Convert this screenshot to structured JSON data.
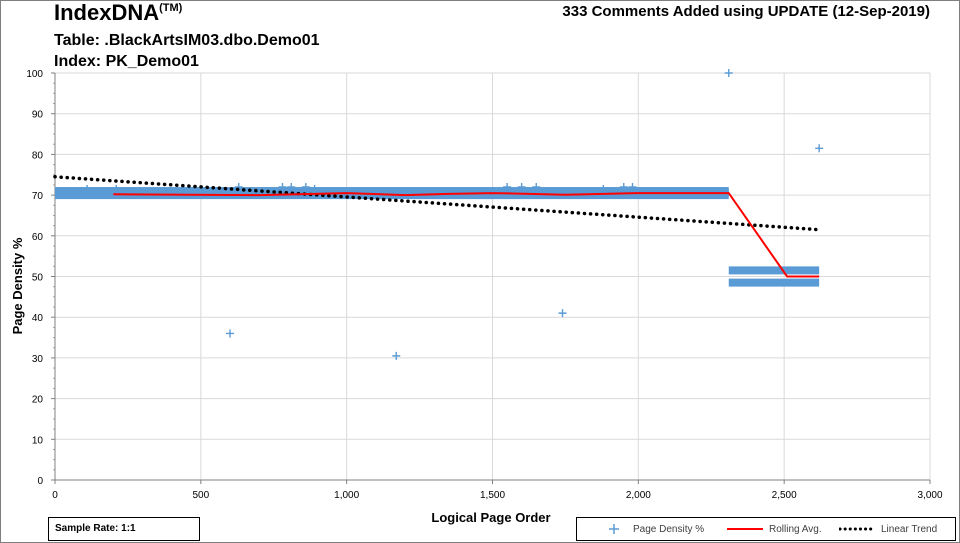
{
  "header": {
    "brand": "IndexDNA",
    "brand_mark": "(TM)",
    "title": "333 Comments Added using UPDATE (12-Sep-2019)",
    "table_line": "Table: .BlackArtsIM03.dbo.Demo01",
    "index_line": "Index: PK_Demo01"
  },
  "sample_rate": "Sample Rate: 1:1",
  "colors": {
    "series_density": "#5b9bd5",
    "series_rolling": "#ff0000",
    "series_trend": "#000000",
    "gridline": "#d9d9d9"
  },
  "chart_data": {
    "type": "scatter",
    "xlabel": "Logical Page Order",
    "ylabel": "Page Density %",
    "xlim": [
      0,
      3000
    ],
    "ylim": [
      0,
      100
    ],
    "x_ticks": [
      0,
      500,
      1000,
      1500,
      2000,
      2500,
      3000
    ],
    "x_tick_labels": [
      "0",
      "500",
      "1,000",
      "1,500",
      "2,000",
      "2,500",
      "3,000"
    ],
    "y_ticks": [
      0,
      10,
      20,
      30,
      40,
      50,
      60,
      70,
      80,
      90,
      100
    ],
    "y_tick_labels": [
      "0",
      "10",
      "20",
      "30",
      "40",
      "50",
      "60",
      "70",
      "80",
      "90",
      "100"
    ],
    "grid": true,
    "legend_position": "bottom-right",
    "series": [
      {
        "name": "Page Density %",
        "kind": "scatter",
        "marker": "plus",
        "dense_bands": [
          {
            "x_start": 0,
            "x_end": 2310,
            "y_values": [
              70,
              70.5,
              71
            ]
          },
          {
            "x_start": 2310,
            "x_end": 2620,
            "y_values": [
              48.5,
              51.5
            ]
          }
        ],
        "points": [
          {
            "x": 110,
            "y": 71.5
          },
          {
            "x": 210,
            "y": 71.5
          },
          {
            "x": 630,
            "y": 72
          },
          {
            "x": 780,
            "y": 72
          },
          {
            "x": 810,
            "y": 72
          },
          {
            "x": 860,
            "y": 72
          },
          {
            "x": 890,
            "y": 71.5
          },
          {
            "x": 1550,
            "y": 72
          },
          {
            "x": 1600,
            "y": 72
          },
          {
            "x": 1650,
            "y": 72
          },
          {
            "x": 1880,
            "y": 71.5
          },
          {
            "x": 1950,
            "y": 72
          },
          {
            "x": 1980,
            "y": 72
          },
          {
            "x": 600,
            "y": 36
          },
          {
            "x": 1170,
            "y": 30.5
          },
          {
            "x": 1740,
            "y": 41
          },
          {
            "x": 2310,
            "y": 100
          },
          {
            "x": 2620,
            "y": 81.5
          }
        ]
      },
      {
        "name": "Rolling Avg.",
        "kind": "line",
        "x": [
          200,
          700,
          1000,
          1200,
          1350,
          1500,
          1750,
          2000,
          2310,
          2510,
          2620
        ],
        "y": [
          70.2,
          70.0,
          70.5,
          70.0,
          70.3,
          70.5,
          70.1,
          70.5,
          70.5,
          50.0,
          50.0
        ]
      },
      {
        "name": "Linear Trend",
        "kind": "dotted-line",
        "x": [
          0,
          2620
        ],
        "y": [
          74.5,
          61.5
        ]
      }
    ]
  }
}
